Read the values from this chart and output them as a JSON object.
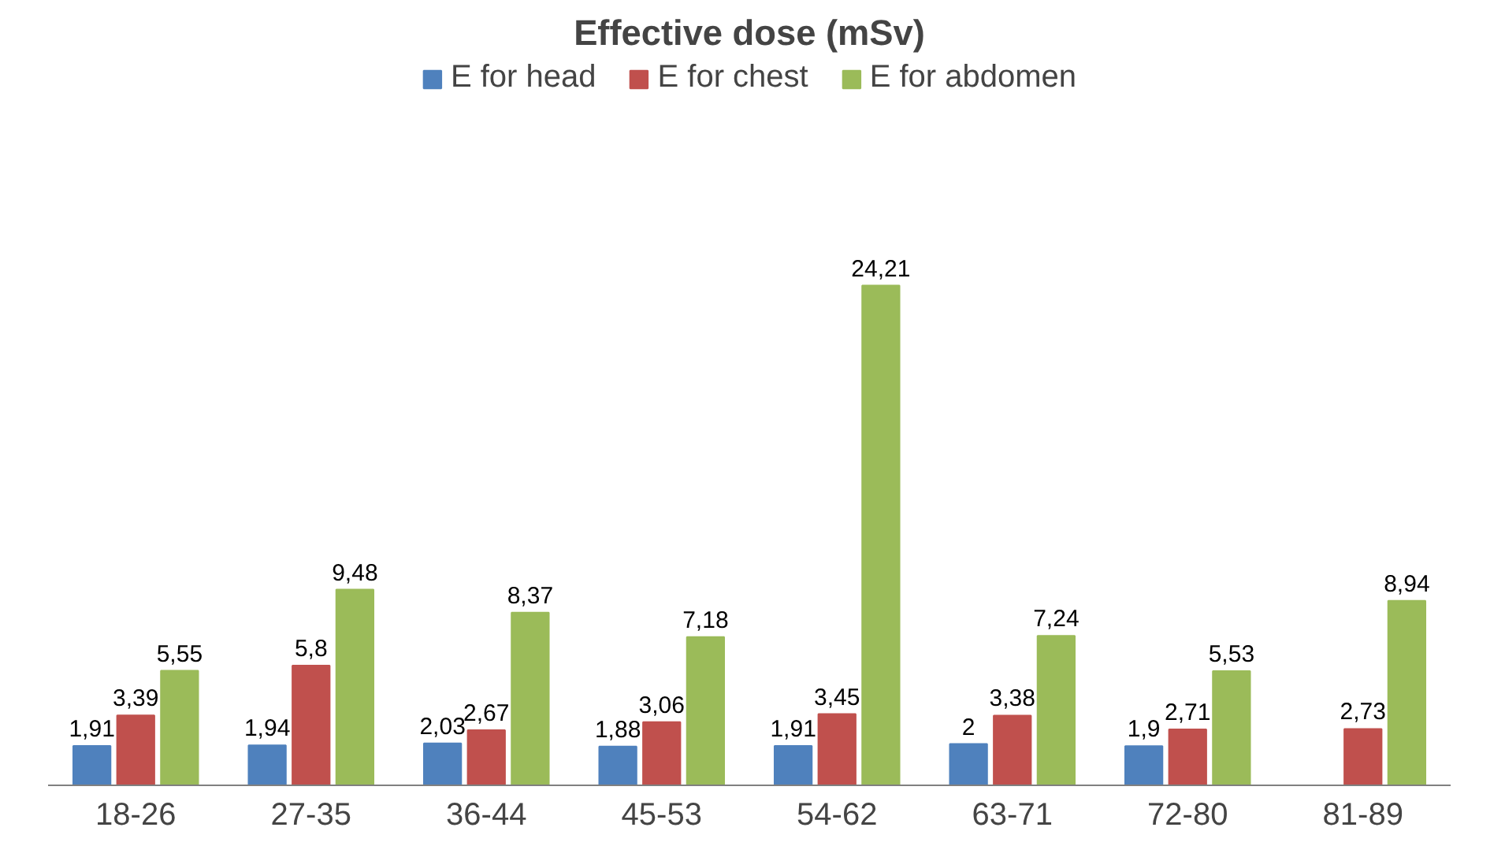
{
  "chart_data": {
    "type": "bar",
    "title": "Effective dose (mSv)",
    "categories": [
      "18-26",
      "27-35",
      "36-44",
      "45-53",
      "54-62",
      "63-71",
      "72-80",
      "81-89"
    ],
    "series": [
      {
        "name": "E for head",
        "color": "#4f81bd",
        "values": [
          1.91,
          1.94,
          2.03,
          1.88,
          1.91,
          2,
          1.9,
          null
        ],
        "value_labels": [
          "1,91",
          "1,94",
          "2,03",
          "1,88",
          "1,91",
          "2",
          "1,9",
          null
        ]
      },
      {
        "name": "E for chest",
        "color": "#c0504d",
        "values": [
          3.39,
          5.8,
          2.67,
          3.06,
          3.45,
          3.38,
          2.71,
          2.73
        ],
        "value_labels": [
          "3,39",
          "5,8",
          "2,67",
          "3,06",
          "3,45",
          "3,38",
          "2,71",
          "2,73"
        ]
      },
      {
        "name": "E for abdomen",
        "color": "#9bbb59",
        "values": [
          5.55,
          9.48,
          8.37,
          7.18,
          24.21,
          7.24,
          5.53,
          8.94
        ],
        "value_labels": [
          "5,55",
          "9,48",
          "8,37",
          "7,18",
          "24,21",
          "7,24",
          "5,53",
          "8,94"
        ]
      }
    ],
    "legend": "top"
  }
}
